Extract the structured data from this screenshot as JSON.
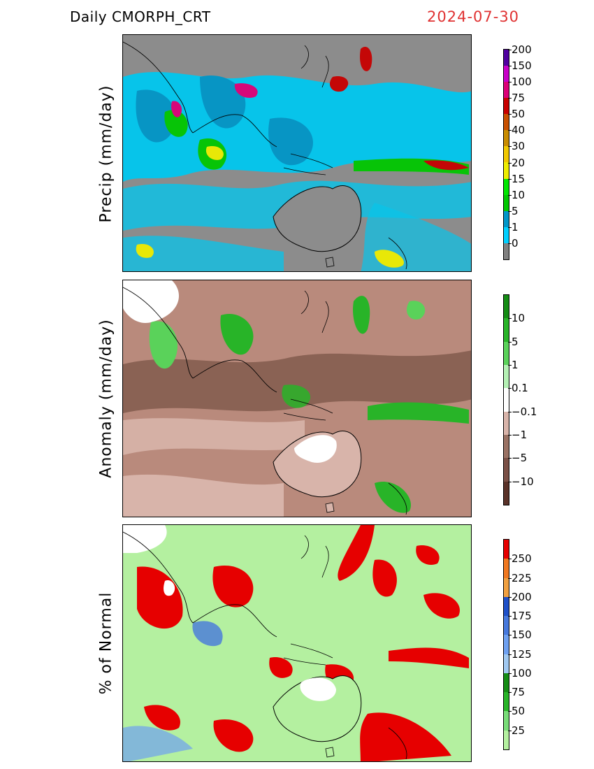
{
  "header": {
    "product": "Daily  CMORPH_CRT",
    "date": "2024-07-30",
    "date_color": "#e03232"
  },
  "panels": [
    {
      "id": "precip",
      "ylabel": "Precip  (mm/day)",
      "background": "#8a8a8a",
      "colorbar": {
        "colors": [
          "#808080",
          "#00cfff",
          "#0096c8",
          "#00c800",
          "#00e600",
          "#eded00",
          "#f0c800",
          "#c88c00",
          "#c85000",
          "#c80000",
          "#dc0078",
          "#c800c8",
          "#5000a0"
        ],
        "labels": [
          "0",
          "1",
          "5",
          "10",
          "15",
          "20",
          "30",
          "40",
          "50",
          "75",
          "100",
          "150",
          "200"
        ]
      }
    },
    {
      "id": "anomaly",
      "ylabel": "Anomaly  (mm/day)",
      "background": "#b98a7c",
      "colorbar": {
        "colors": [
          "#5a3228",
          "#7a5046",
          "#9a7264",
          "#d8b4aa",
          "#ffffff",
          "#b4f0b4",
          "#5ad25a",
          "#28b428",
          "#148c14"
        ],
        "labels": [
          "−10",
          "−5",
          "−1",
          "−0.1",
          "0.1",
          "1",
          "5",
          "10"
        ]
      }
    },
    {
      "id": "percent",
      "ylabel": "% of Normal",
      "background": "#b4f0a0",
      "colorbar": {
        "colors": [
          "#b4f0a0",
          "#78dc78",
          "#28b428",
          "#148c14",
          "#a0c8f0",
          "#6ea0f0",
          "#4678dc",
          "#1e50c8",
          "#f0a040",
          "#f07820",
          "#e60000"
        ],
        "labels": [
          "25",
          "50",
          "75",
          "100",
          "125",
          "150",
          "175",
          "200",
          "225",
          "250"
        ]
      }
    }
  ]
}
